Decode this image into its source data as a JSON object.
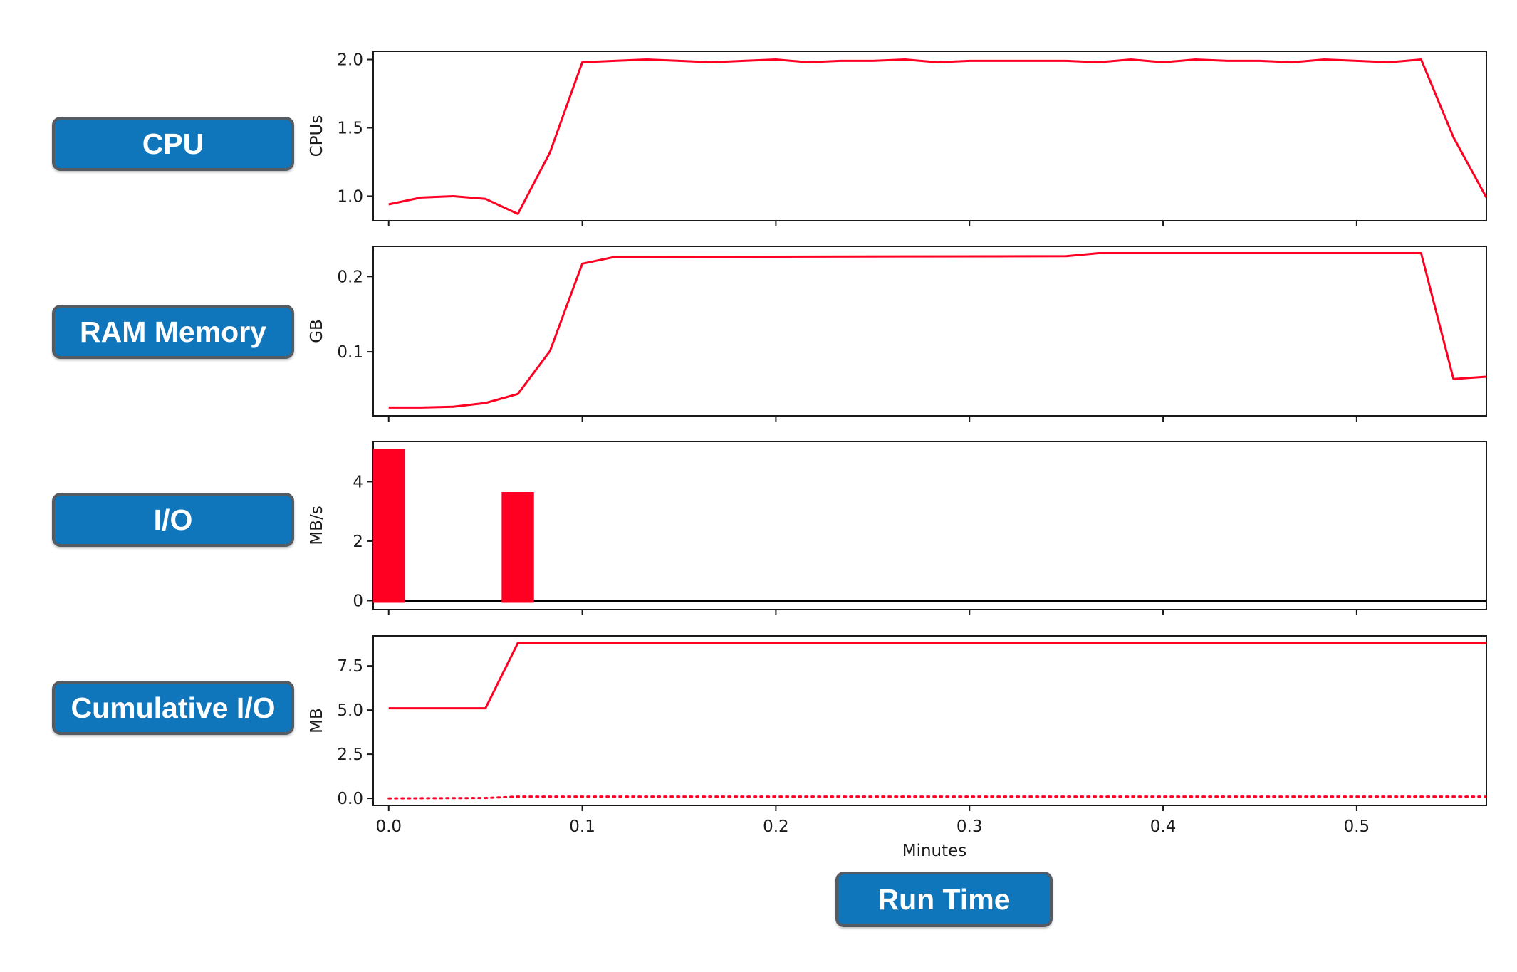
{
  "buttons": {
    "cpu": "CPU",
    "ram": "RAM Memory",
    "io": "I/O",
    "cumulative_io": "Cumulative I/O",
    "run_time": "Run Time"
  },
  "colors": {
    "series": "#ff0022",
    "axis": "#1a1a1a",
    "button_bg": "#0f76bb",
    "button_border": "#555b62"
  },
  "chart_data": [
    {
      "type": "line",
      "ylabel": "CPUs",
      "xlim": [
        -0.008,
        0.567
      ],
      "ylim": [
        0.82,
        2.06
      ],
      "yticks": [
        1.0,
        1.5,
        2.0
      ],
      "ytick_labels": [
        "1.0",
        "1.5",
        "2.0"
      ],
      "series": [
        {
          "x": [
            0,
            0.0167,
            0.0333,
            0.05,
            0.0667,
            0.0833,
            0.1,
            0.1167,
            0.1333,
            0.15,
            0.1667,
            0.1833,
            0.2,
            0.2167,
            0.2333,
            0.25,
            0.2667,
            0.2833,
            0.3,
            0.3167,
            0.3333,
            0.35,
            0.3667,
            0.3833,
            0.4,
            0.4167,
            0.4333,
            0.45,
            0.4667,
            0.4833,
            0.5,
            0.5167,
            0.5333,
            0.55,
            0.567
          ],
          "y": [
            0.94,
            0.99,
            1.0,
            0.98,
            0.87,
            1.32,
            1.98,
            1.99,
            2.0,
            1.99,
            1.98,
            1.99,
            2.0,
            1.98,
            1.99,
            1.99,
            2.0,
            1.98,
            1.99,
            1.99,
            1.99,
            1.99,
            1.98,
            2.0,
            1.98,
            2.0,
            1.99,
            1.99,
            1.98,
            2.0,
            1.99,
            1.98,
            2.0,
            1.43,
            0.99
          ]
        }
      ]
    },
    {
      "type": "line",
      "ylabel": "GB",
      "xlim": [
        -0.008,
        0.567
      ],
      "ylim": [
        0.015,
        0.24
      ],
      "yticks": [
        0.1,
        0.2
      ],
      "ytick_labels": [
        "0.1",
        "0.2"
      ],
      "series": [
        {
          "x": [
            0,
            0.0167,
            0.0333,
            0.05,
            0.0667,
            0.0833,
            0.1,
            0.1167,
            0.1333,
            0.35,
            0.3667,
            0.5333,
            0.55,
            0.567
          ],
          "y": [
            0.026,
            0.026,
            0.027,
            0.032,
            0.044,
            0.101,
            0.217,
            0.226,
            0.226,
            0.227,
            0.231,
            0.231,
            0.064,
            0.067
          ]
        }
      ]
    },
    {
      "type": "bar",
      "ylabel": "MB/s",
      "xlim": [
        -0.008,
        0.567
      ],
      "ylim": [
        -0.3,
        5.35
      ],
      "yticks": [
        0,
        2,
        4
      ],
      "ytick_labels": [
        "0",
        "2",
        "4"
      ],
      "bar_width": 0.0167,
      "series": [
        {
          "x": [
            0,
            0.0667
          ],
          "y": [
            5.1,
            3.65
          ]
        }
      ]
    },
    {
      "type": "line",
      "ylabel": "MB",
      "xlabel": "Minutes",
      "xlim": [
        -0.008,
        0.567
      ],
      "ylim": [
        -0.4,
        9.2
      ],
      "yticks": [
        0.0,
        2.5,
        5.0,
        7.5
      ],
      "ytick_labels": [
        "0.0",
        "2.5",
        "5.0",
        "7.5"
      ],
      "xticks": [
        0.0,
        0.1,
        0.2,
        0.3,
        0.4,
        0.5
      ],
      "xtick_labels": [
        "0.0",
        "0.1",
        "0.2",
        "0.3",
        "0.4",
        "0.5"
      ],
      "series": [
        {
          "style": "solid",
          "x": [
            0,
            0.05,
            0.0667,
            0.567
          ],
          "y": [
            5.1,
            5.1,
            8.8,
            8.8
          ]
        },
        {
          "style": "dotted",
          "x": [
            0,
            0.05,
            0.0667,
            0.567
          ],
          "y": [
            0.0,
            0.02,
            0.1,
            0.1
          ]
        }
      ]
    }
  ]
}
